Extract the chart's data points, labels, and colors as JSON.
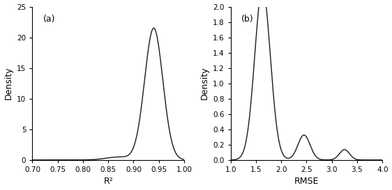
{
  "panel_a": {
    "label": "(a)",
    "xlabel": "R²",
    "ylabel": "Density",
    "xlim": [
      0.7,
      1.0
    ],
    "ylim": [
      0,
      25
    ],
    "xticks": [
      0.7,
      0.75,
      0.8,
      0.85,
      0.9,
      0.95,
      1.0
    ],
    "yticks": [
      0,
      5,
      10,
      15,
      20,
      25
    ],
    "peaks": [
      {
        "mean": 0.94,
        "std": 0.018,
        "weight": 0.97
      },
      {
        "mean": 0.87,
        "std": 0.025,
        "weight": 0.03
      }
    ]
  },
  "panel_b": {
    "label": "(b)",
    "xlabel": "RMSE",
    "ylabel": "Density",
    "xlim": [
      1.0,
      4.0
    ],
    "ylim": [
      0,
      2.0
    ],
    "xticks": [
      1.0,
      1.5,
      2.0,
      2.5,
      3.0,
      3.5,
      4.0
    ],
    "yticks": [
      0.0,
      0.2,
      0.4,
      0.6,
      0.8,
      1.0,
      1.2,
      1.4,
      1.6,
      1.8,
      2.0
    ],
    "peaks": [
      {
        "mean": 1.63,
        "std": 0.155,
        "weight": 0.868
      },
      {
        "mean": 2.45,
        "std": 0.12,
        "weight": 0.098
      },
      {
        "mean": 3.25,
        "std": 0.1,
        "weight": 0.034
      }
    ]
  },
  "line_color": "#1a1a1a",
  "line_width": 1.0,
  "background_color": "#ffffff",
  "label_fontsize": 9,
  "tick_fontsize": 7.5
}
